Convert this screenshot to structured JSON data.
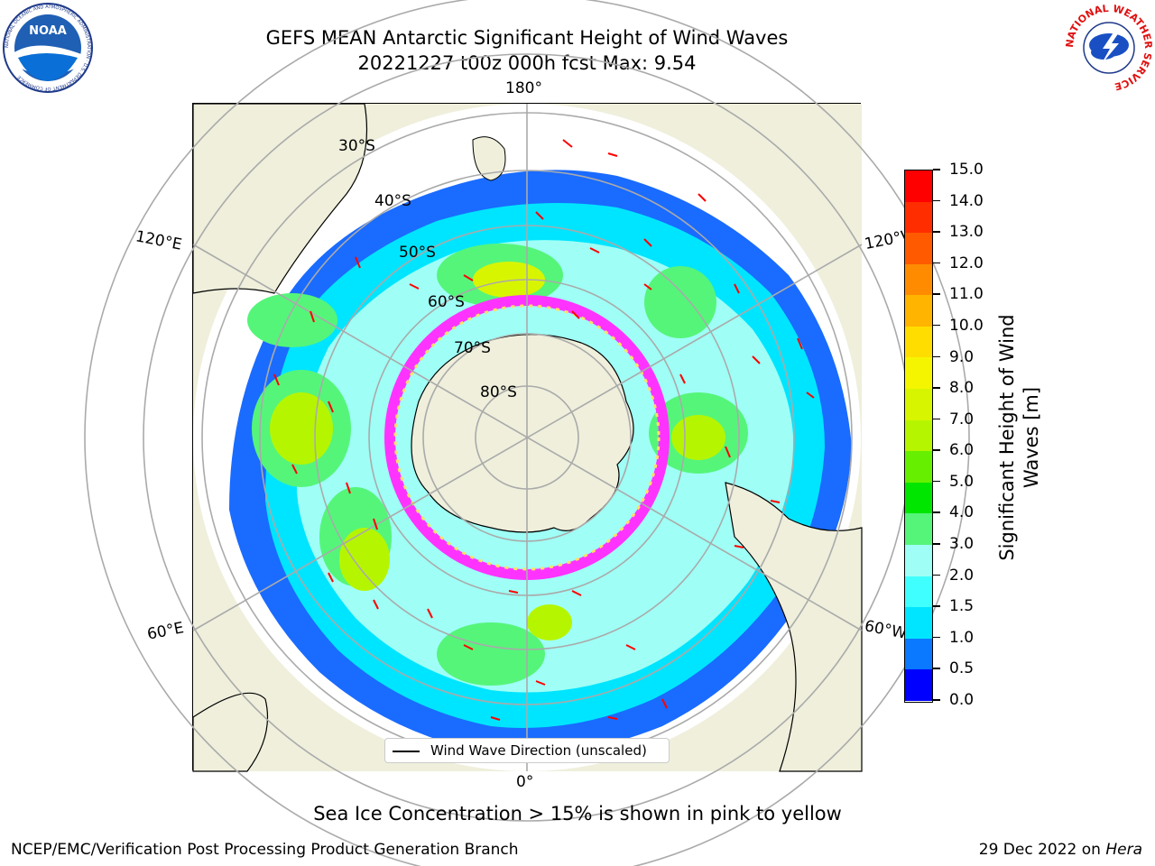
{
  "header": {
    "title_line1": "GEFS MEAN Antarctic Significant Height of Wind Waves",
    "title_line2": "20221227 t00z 000h fcst   Max: 9.54"
  },
  "logos": {
    "noaa_text": "NOAA",
    "noaa_ring": "NATIONAL OCEANIC AND ATMOSPHERIC ADMINISTRATION · U.S. DEPARTMENT OF COMMERCE",
    "nws_ring": "NATIONAL WEATHER SERVICE"
  },
  "map": {
    "longitude_labels": {
      "top": "180°",
      "bottom": "0°",
      "left_upper": "120°E",
      "left_lower": "60°E",
      "right_upper": "120°W",
      "right_lower": "60°W"
    },
    "latitude_labels": [
      "30°S",
      "40°S",
      "50°S",
      "60°S",
      "70°S",
      "80°S"
    ],
    "legend_label": "Wind Wave Direction (unscaled)"
  },
  "colorbar": {
    "label": "Significant Height of Wind Waves [m]",
    "ticks": [
      "0.0",
      "0.5",
      "1.0",
      "1.5",
      "2.0",
      "3.0",
      "4.0",
      "5.0",
      "6.0",
      "7.0",
      "8.0",
      "9.0",
      "10.0",
      "11.0",
      "12.0",
      "13.0",
      "14.0",
      "15.0"
    ],
    "colors": [
      "#0000ff",
      "#0a78ff",
      "#00e5ff",
      "#40ffff",
      "#9ffff6",
      "#55f57a",
      "#00e600",
      "#66f000",
      "#b6f500",
      "#d8f500",
      "#f5f500",
      "#ffdd00",
      "#ffb400",
      "#ff8c00",
      "#ff5a00",
      "#ff2d00",
      "#ff0000"
    ]
  },
  "note": "Sea Ice Concentration > 15% is shown in pink to yellow",
  "footer": {
    "left": "NCEP/EMC/Verification Post Processing Product Generation Branch",
    "right_prefix": "29 Dec 2022 on ",
    "right_machine": "Hera"
  }
}
